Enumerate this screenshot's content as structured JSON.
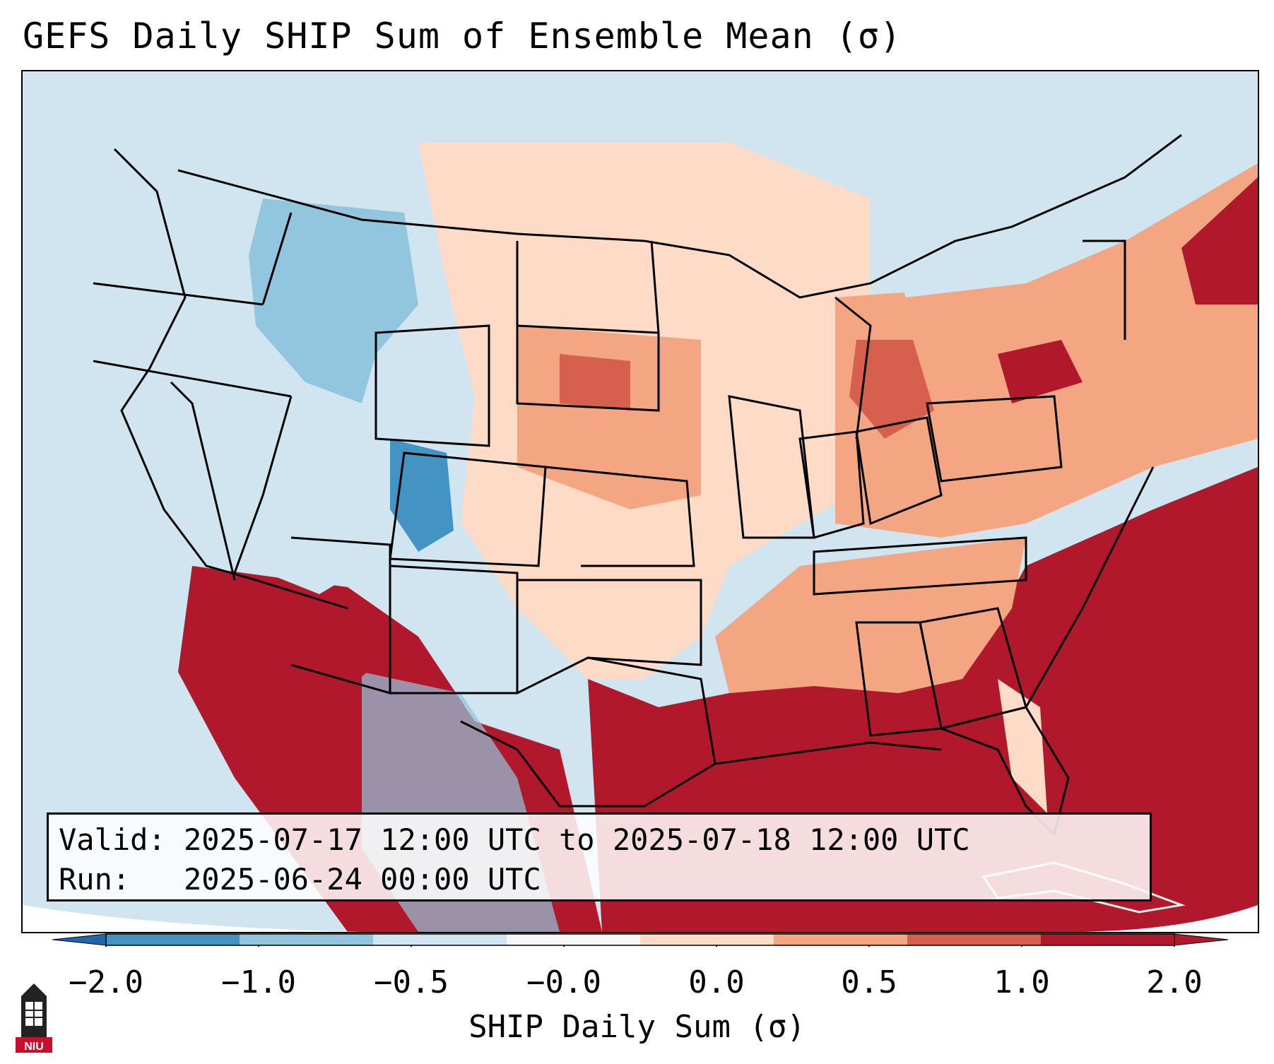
{
  "title": "GEFS Daily SHIP Sum of Ensemble Mean (σ)",
  "info": {
    "valid_label": "Valid:",
    "valid_value": "2025-07-17 12:00 UTC to 2025-07-18 12:00 UTC",
    "run_label": "Run:",
    "run_value": "2025-06-24 00:00 UTC"
  },
  "colorbar": {
    "label": "SHIP Daily Sum (σ)",
    "ticks": [
      "−2.0",
      "−1.0",
      "−0.5",
      "−0.0",
      "0.0",
      "0.5",
      "1.0",
      "2.0"
    ],
    "colors": [
      "#4393c3",
      "#92c5de",
      "#d1e5f0",
      "#f7f7f7",
      "#fddbc7",
      "#f4a582",
      "#d6604d",
      "#b2182b"
    ],
    "under_color": "#2166ac",
    "over_color": "#b2182b"
  },
  "logo": {
    "text": "NIU"
  },
  "palette": {
    "ocean": "#d1e5f0",
    "blue_light": "#d1e5f0",
    "blue_mid": "#92c5de",
    "blue_dark": "#4393c3",
    "red_light": "#fddbc7",
    "red_mid": "#f4a582",
    "red_strong": "#d6604d",
    "red_dark": "#b2182b"
  }
}
